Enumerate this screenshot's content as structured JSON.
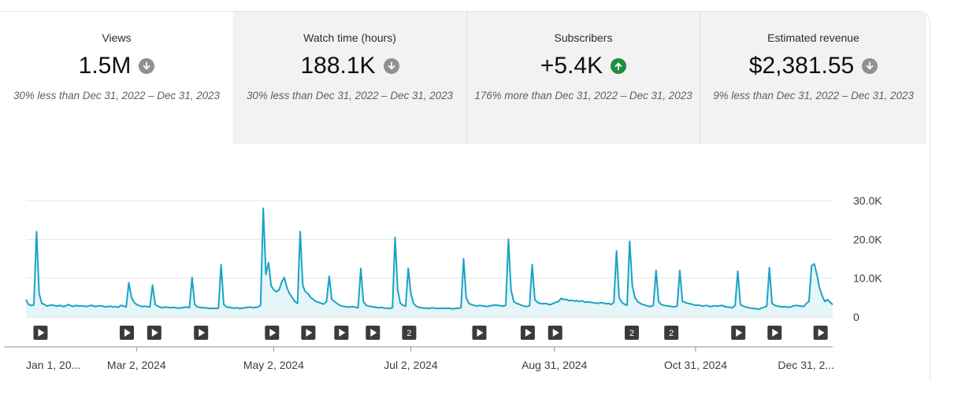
{
  "metrics": [
    {
      "label": "Views",
      "value": "1.5M",
      "trend": "down",
      "compare": "30% less than Dec 31, 2022 – Dec 31, 2023",
      "selected": true
    },
    {
      "label": "Watch time (hours)",
      "value": "188.1K",
      "trend": "down",
      "compare": "30% less than Dec 31, 2022 – Dec 31, 2023",
      "selected": false
    },
    {
      "label": "Subscribers",
      "value": "+5.4K",
      "trend": "up",
      "compare": "176% more than Dec 31, 2022 – Dec 31, 2023",
      "selected": false
    },
    {
      "label": "Estimated revenue",
      "value": "$2,381.55",
      "trend": "down",
      "compare": "9% less than Dec 31, 2022 – Dec 31, 2023",
      "selected": false
    }
  ],
  "colors": {
    "line": "#1aa3c5",
    "fill": "#e6f5f8",
    "grid": "#e5e5e5",
    "axis": "#909090",
    "down": "#909090",
    "up": "#1e8e3e",
    "marker": "#3b3b3b"
  },
  "chart_data": {
    "type": "area",
    "x_ticks": [
      "Jan 1, 20...",
      "Mar 2, 2024",
      "May 2, 2024",
      "Jul 2, 2024",
      "Aug 31, 2024",
      "Oct 31, 2024",
      "Dec 31, 2..."
    ],
    "y_ticks": [
      "30.0K",
      "20.0K",
      "10.0K",
      "0"
    ],
    "ylim": [
      0,
      30000
    ],
    "series": [
      {
        "values": [
          4500,
          3200,
          3000,
          3100,
          22000,
          6000,
          3500,
          3200,
          2800,
          3000,
          3100,
          2900,
          2800,
          3000,
          2700,
          2800,
          3200,
          2900,
          2700,
          3000,
          2800,
          2900,
          2800,
          2700,
          2900,
          3000,
          2700,
          2800,
          2900,
          2800,
          2600,
          2700,
          2800,
          2600,
          2700,
          2500,
          3000,
          2800,
          2600,
          8800,
          5000,
          3800,
          3200,
          2900,
          2700,
          2800,
          2700,
          2600,
          8200,
          3200,
          2800,
          2500,
          2400,
          2600,
          2500,
          2400,
          2500,
          2400,
          2300,
          2400,
          2500,
          2600,
          2400,
          10200,
          3200,
          2600,
          2500,
          2400,
          2400,
          2300,
          2200,
          2300,
          2200,
          2300,
          13500,
          3300,
          2600,
          2500,
          2400,
          2300,
          2400,
          2200,
          2300,
          2400,
          2500,
          2600,
          2400,
          2500,
          2600,
          3000,
          28000,
          11000,
          14000,
          8000,
          7000,
          6500,
          7000,
          9000,
          10200,
          7500,
          6000,
          5000,
          4000,
          3500,
          22000,
          8000,
          6500,
          6000,
          5000,
          4500,
          4000,
          3800,
          3500,
          3300,
          4000,
          10500,
          4500,
          4000,
          3500,
          3000,
          2800,
          2700,
          2600,
          2600,
          2700,
          2500,
          2400,
          12500,
          4000,
          3000,
          2800,
          2700,
          2600,
          2500,
          2400,
          2500,
          2300,
          2300,
          2200,
          2400,
          20500,
          7000,
          3500,
          3000,
          2800,
          12500,
          6000,
          3500,
          2800,
          2500,
          2400,
          2300,
          2300,
          2200,
          2400,
          2300,
          2200,
          2200,
          2300,
          2200,
          2300,
          2200,
          2100,
          2200,
          2300,
          2400,
          15000,
          5000,
          3500,
          3200,
          3000,
          2800,
          3000,
          2900,
          2800,
          2700,
          2900,
          3000,
          3100,
          3000,
          2900,
          2800,
          3000,
          20000,
          7000,
          4000,
          3500,
          3300,
          3000,
          2800,
          2700,
          2900,
          13500,
          4500,
          3800,
          3500,
          3400,
          3500,
          3300,
          3200,
          3500,
          3800,
          4000,
          4800,
          4500,
          4500,
          4200,
          4300,
          4100,
          4200,
          4000,
          4200,
          3800,
          3900,
          3800,
          3700,
          3600,
          3500,
          3700,
          3600,
          3400,
          3500,
          3200,
          3800,
          17000,
          5000,
          3800,
          3300,
          3000,
          19500,
          8000,
          5000,
          4000,
          3500,
          3200,
          3000,
          2800,
          2700,
          3000,
          12000,
          4000,
          3200,
          3000,
          2900,
          2800,
          2700,
          2600,
          2800,
          12000,
          4000,
          3800,
          3500,
          3400,
          3200,
          3000,
          3100,
          2900,
          2800,
          3000,
          2800,
          2700,
          2900,
          2800,
          2900,
          3000,
          2700,
          2600,
          2500,
          2400,
          3000,
          11800,
          3200,
          2800,
          2600,
          2400,
          2300,
          2200,
          2100,
          2000,
          2300,
          2500,
          2800,
          12700,
          3500,
          3000,
          2800,
          2700,
          2600,
          2700,
          2500,
          2600,
          2800,
          3000,
          2900,
          2800,
          2700,
          3500,
          4000,
          13200,
          13700,
          11000,
          7500,
          5500,
          4000,
          4500,
          3800,
          3200
        ]
      }
    ],
    "marker_rows": [
      {
        "pos": 0.018,
        "label": ""
      },
      {
        "pos": 0.125,
        "label": ""
      },
      {
        "pos": 0.159,
        "label": ""
      },
      {
        "pos": 0.217,
        "label": ""
      },
      {
        "pos": 0.305,
        "label": ""
      },
      {
        "pos": 0.35,
        "label": ""
      },
      {
        "pos": 0.391,
        "label": ""
      },
      {
        "pos": 0.43,
        "label": ""
      },
      {
        "pos": 0.475,
        "label": "2"
      },
      {
        "pos": 0.562,
        "label": ""
      },
      {
        "pos": 0.622,
        "label": ""
      },
      {
        "pos": 0.656,
        "label": ""
      },
      {
        "pos": 0.751,
        "label": "2"
      },
      {
        "pos": 0.8,
        "label": "2"
      },
      {
        "pos": 0.883,
        "label": ""
      },
      {
        "pos": 0.928,
        "label": ""
      },
      {
        "pos": 0.985,
        "label": ""
      }
    ],
    "grid": true
  }
}
